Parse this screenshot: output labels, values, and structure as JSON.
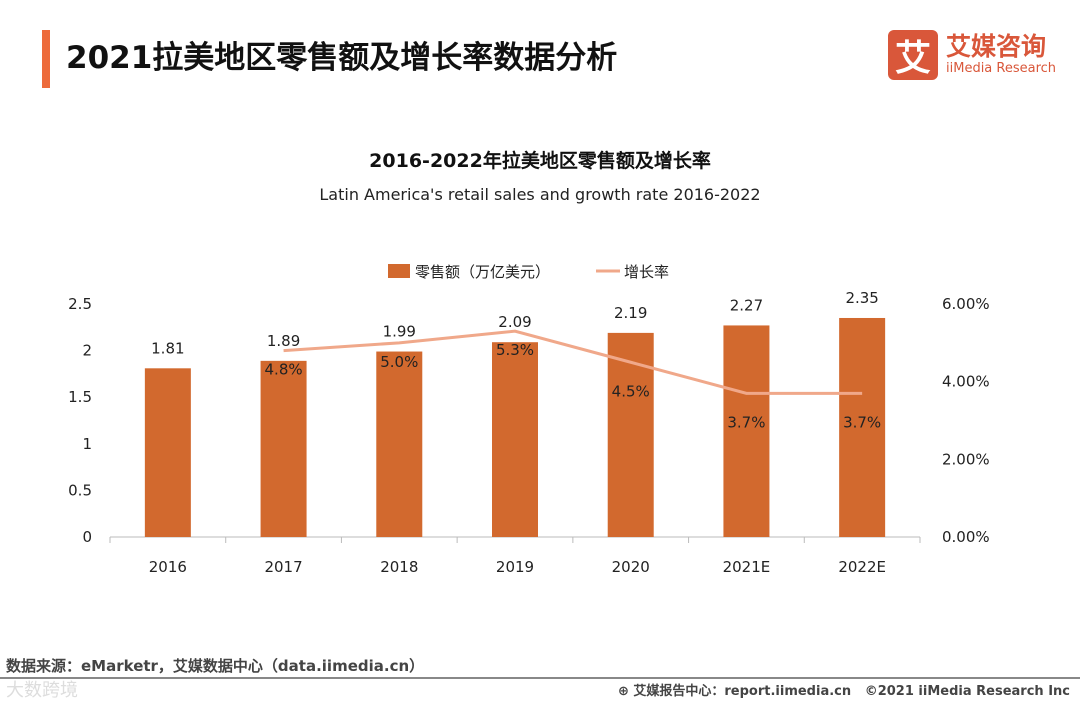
{
  "header": {
    "title": "2021拉美地区零售额及增长率数据分析",
    "logo_mark": "艾",
    "logo_cn": "艾媒咨询",
    "logo_en": "iiMedia Research"
  },
  "chart_data": {
    "type": "bar+line",
    "title": "2016-2022年拉美地区零售额及增长率",
    "subtitle": "Latin America's retail sales and growth rate 2016-2022",
    "categories": [
      "2016",
      "2017",
      "2018",
      "2019",
      "2020",
      "2021E",
      "2022E"
    ],
    "series": [
      {
        "name": "零售额（万亿美元）",
        "type": "bar",
        "axis": "left",
        "color": "#d2692e",
        "values": [
          1.81,
          1.89,
          1.99,
          2.09,
          2.19,
          2.27,
          2.35
        ],
        "labels": [
          "1.81",
          "1.89",
          "1.99",
          "2.09",
          "2.19",
          "2.27",
          "2.35"
        ]
      },
      {
        "name": "增长率",
        "type": "line",
        "axis": "right",
        "color": "#f0a88a",
        "values": [
          null,
          4.8,
          5.0,
          5.3,
          4.5,
          3.7,
          3.7
        ],
        "labels": [
          "",
          "4.8%",
          "5.0%",
          "5.3%",
          "4.5%",
          "3.7%",
          "3.7%"
        ]
      }
    ],
    "left_axis": {
      "range": [
        0,
        2.5
      ],
      "ticks": [
        "0",
        "0.5",
        "1",
        "1.5",
        "2",
        "2.5"
      ]
    },
    "right_axis": {
      "range": [
        0,
        6
      ],
      "ticks": [
        "0.00%",
        "2.00%",
        "4.00%",
        "6.00%"
      ]
    },
    "legend": "top-center",
    "grid": false
  },
  "footer": {
    "source": "数据来源：eMarketr，艾媒数据中心（data.iimedia.cn）",
    "watermark": "大数跨境",
    "report": "艾媒报告中心：report.iimedia.cn",
    "copyright": "©2021  iiMedia Research  Inc"
  }
}
